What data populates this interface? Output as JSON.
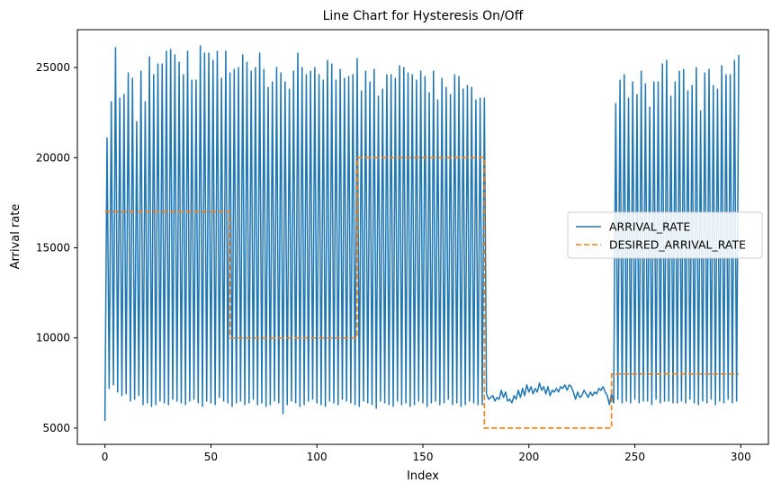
{
  "chart_data": {
    "type": "line",
    "title": "Line Chart for Hysteresis On/Off",
    "xlabel": "Index",
    "ylabel": "Arrival rate",
    "xlim": [
      -13,
      313
    ],
    "ylim": [
      4100,
      27100
    ],
    "xticks": [
      0,
      50,
      100,
      150,
      200,
      250,
      300
    ],
    "yticks": [
      5000,
      10000,
      15000,
      20000,
      25000
    ],
    "grid": false,
    "legend_position": "center-right",
    "series": [
      {
        "name": "ARRIVAL_RATE",
        "color": "#1f77b4",
        "style": "solid",
        "segments": [
          {
            "x_start": 0,
            "x_end": 179,
            "low": [
              5400,
              7200,
              7400,
              7000,
              6800,
              6900,
              6500,
              6600,
              6800,
              6300,
              6400,
              6200,
              6300,
              6500,
              6400,
              6300,
              6600,
              6500,
              6400,
              6300,
              6500,
              6600,
              6400,
              6200,
              6500,
              6400,
              6300,
              6700,
              6500,
              6400,
              6200,
              6400,
              6500,
              6300,
              6400,
              6600,
              6300,
              6400,
              6200,
              6300,
              6500,
              6400,
              5800,
              6300,
              6500,
              6400,
              6200,
              6300,
              6500,
              6600,
              6400,
              6300,
              6200,
              6500,
              6400,
              6300,
              6600,
              6500,
              6400,
              6300,
              6200,
              6500,
              6400,
              6300,
              6100,
              6500,
              6400,
              6300,
              6200,
              6500,
              6300,
              6400,
              6200,
              6300,
              6500,
              6400,
              6200,
              6400,
              6500,
              6300,
              6400,
              6600,
              6300,
              6400,
              6200,
              6300,
              6500,
              6400,
              6300
            ],
            "high": [
              21100,
              23100,
              26100,
              23300,
              23500,
              24700,
              24400,
              22000,
              24800,
              23100,
              25600,
              24600,
              25200,
              25200,
              25900,
              26000,
              25700,
              25300,
              24600,
              25900,
              24300,
              24300,
              26200,
              25800,
              25800,
              25400,
              25900,
              24400,
              25900,
              24700,
              24900,
              25000,
              25700,
              25300,
              24800,
              25000,
              25800,
              24900,
              23900,
              24200,
              25000,
              24700,
              24200,
              23800,
              24800,
              25800,
              25000,
              24600,
              24800,
              25000,
              24600,
              24300,
              25400,
              25200,
              24300,
              24900,
              24400,
              24500,
              24600,
              25500,
              23700,
              24800,
              24200,
              24900,
              23400,
              23800,
              24600,
              24600,
              24400,
              25100,
              25000,
              24700,
              24600,
              24300,
              24800,
              24500,
              23600,
              24800,
              23200,
              24400,
              23900,
              23500,
              24600,
              24500,
              23800,
              24000,
              23900,
              23200,
              23300
            ]
          },
          {
            "x_start": 180,
            "x_end": 239,
            "values": [
              6900,
              6600,
              6700,
              6800,
              6500,
              6700,
              6600,
              7100,
              6700,
              7000,
              6500,
              6600,
              6400,
              6800,
              6600,
              7100,
              6700,
              7200,
              6800,
              7400,
              7000,
              7300,
              6900,
              7200,
              7000,
              7500,
              7100,
              7300,
              6900,
              7300,
              6800,
              7100,
              7000,
              7200,
              7000,
              7300,
              7200,
              7400,
              7100,
              7400,
              7300,
              7000,
              6600,
              7000,
              6700,
              6800,
              7100,
              6900,
              6700,
              7000,
              6800,
              7000,
              6900,
              7200,
              7100,
              7300,
              7000,
              6800,
              6300,
              6900
            ]
          },
          {
            "x_start": 240,
            "x_end": 299,
            "low": [
              6400,
              6600,
              6400,
              6500,
              6400,
              6600,
              6400,
              6500,
              6500,
              6300,
              6600,
              6400,
              6500,
              6500,
              6400,
              6400,
              6500,
              6400,
              6600,
              6400,
              6300,
              6500,
              6400,
              6600,
              6300,
              6500,
              6400,
              6600,
              6400,
              6500
            ],
            "high": [
              23000,
              24300,
              24600,
              23300,
              24200,
              23500,
              24800,
              24100,
              22800,
              24200,
              24200,
              25200,
              25400,
              23400,
              24200,
              24800,
              24900,
              23700,
              24000,
              25000,
              22600,
              24700,
              24900,
              24000,
              23800,
              25100,
              24600,
              24600,
              25400,
              25700
            ]
          }
        ]
      },
      {
        "name": "DESIRED_ARRIVAL_RATE",
        "color": "#ff7f0e",
        "style": "dashed",
        "steps": [
          {
            "x_start": 0,
            "x_end": 59,
            "value": 17000
          },
          {
            "x_start": 60,
            "x_end": 119,
            "value": 10000
          },
          {
            "x_start": 120,
            "x_end": 179,
            "value": 20000
          },
          {
            "x_start": 180,
            "x_end": 239,
            "value": 5000
          },
          {
            "x_start": 240,
            "x_end": 299,
            "value": 8000
          }
        ]
      }
    ]
  }
}
